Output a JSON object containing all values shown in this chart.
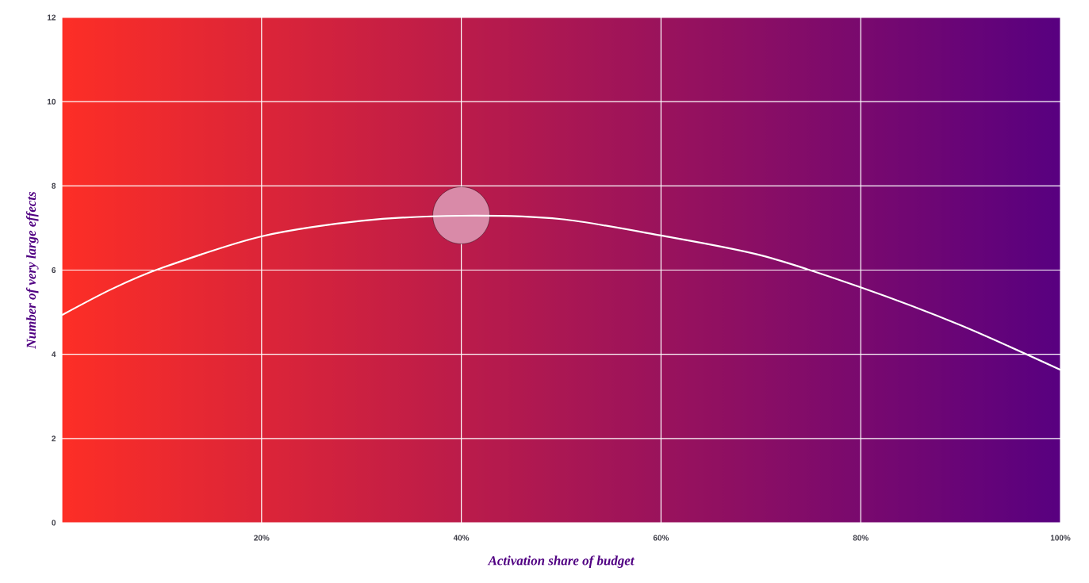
{
  "chart_data": {
    "type": "line",
    "xlabel": "Activation share of budget",
    "ylabel": "Number of very large effects",
    "xlim": [
      0,
      100
    ],
    "ylim": [
      0,
      12
    ],
    "xticks": [
      {
        "value": 0,
        "label": null
      },
      {
        "value": 20,
        "label": "20%"
      },
      {
        "value": 40,
        "label": "40%"
      },
      {
        "value": 60,
        "label": "60%"
      },
      {
        "value": 80,
        "label": "80%"
      },
      {
        "value": 100,
        "label": "100%"
      }
    ],
    "yticks": [
      0,
      2,
      4,
      6,
      8,
      10,
      12
    ],
    "grid": true,
    "x": [
      0,
      5,
      10,
      20,
      30,
      40,
      50,
      60,
      70,
      80,
      90,
      100
    ],
    "series": [
      {
        "type": "scatter",
        "color": "#d98aa8",
        "marker": "circle",
        "x": [
          40
        ],
        "values": [
          7.3
        ]
      },
      {
        "color": "#ffffff",
        "marker": "none",
        "line_style": "solid",
        "values": [
          4.93,
          5.55,
          6.05,
          6.8,
          7.17,
          7.29,
          7.21,
          6.82,
          6.35,
          5.59,
          4.69,
          3.63
        ]
      }
    ]
  }
}
